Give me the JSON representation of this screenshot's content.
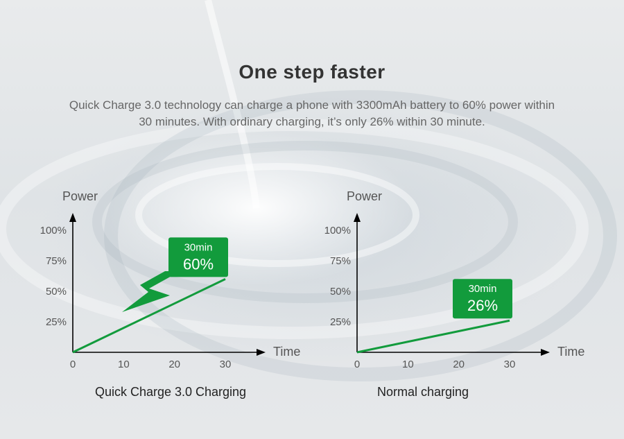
{
  "headline": "One step faster",
  "description_line1": "Quick Charge 3.0 technology can charge a phone with 3300mAh battery to 60% power within",
  "description_line2": "30 minutes. With ordinary charging, it’s only 26% within 30 minute.",
  "colors": {
    "accent_green": "#129b3c",
    "axis": "#000000"
  },
  "chart_data": [
    {
      "type": "line",
      "ylabel": "Power",
      "xlabel": "Time",
      "x_ticks": [
        "0",
        "10",
        "20",
        "30"
      ],
      "y_ticks": [
        "25%",
        "50%",
        "75%",
        "100%"
      ],
      "xlim": [
        0,
        30
      ],
      "ylim": [
        0,
        100
      ],
      "series": [
        {
          "x": [
            0,
            30
          ],
          "y": [
            0,
            60
          ]
        }
      ],
      "annotation": {
        "line1": "30min",
        "line2": "60%"
      },
      "caption": "Quick Charge 3.0 Charging",
      "marker": "lightning-bolt-icon"
    },
    {
      "type": "line",
      "ylabel": "Power",
      "xlabel": "Time",
      "x_ticks": [
        "0",
        "10",
        "20",
        "30"
      ],
      "y_ticks": [
        "25%",
        "50%",
        "75%",
        "100%"
      ],
      "xlim": [
        0,
        30
      ],
      "ylim": [
        0,
        100
      ],
      "series": [
        {
          "x": [
            0,
            30
          ],
          "y": [
            0,
            26
          ]
        }
      ],
      "annotation": {
        "line1": "30min",
        "line2": "26%"
      },
      "caption": "Normal charging"
    }
  ]
}
